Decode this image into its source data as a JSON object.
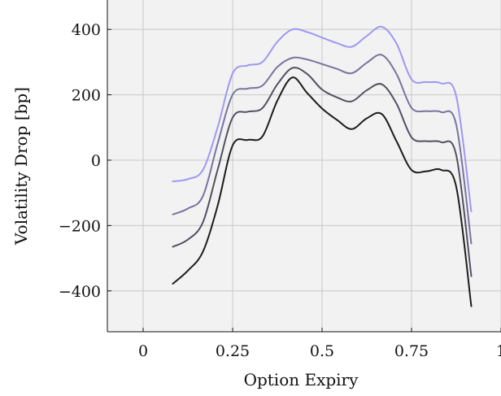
{
  "chart_data": {
    "type": "line",
    "title": "",
    "xlabel": "Option Expiry",
    "ylabel": "Volatility Drop [bp]",
    "xlim": [
      -0.1,
      1.0
    ],
    "ylim": [
      -525,
      490
    ],
    "grid": true,
    "background": "#f2f2f2",
    "x_ticks": [
      0,
      0.25,
      0.5,
      0.75,
      1
    ],
    "x_tick_labels": [
      "0",
      "0.25",
      "0.5",
      "0.75",
      "1"
    ],
    "y_ticks": [
      -400,
      -200,
      0,
      200,
      400
    ],
    "y_tick_labels": [
      "−400",
      "−200",
      "0",
      "200",
      "400"
    ],
    "x": [
      0.083,
      0.125,
      0.167,
      0.208,
      0.25,
      0.292,
      0.333,
      0.375,
      0.417,
      0.458,
      0.5,
      0.542,
      0.583,
      0.625,
      0.667,
      0.708,
      0.75,
      0.792,
      0.833,
      0.875,
      0.917
    ],
    "series": [
      {
        "color": "#9f98f0",
        "values": [
          -65,
          -58,
          -30,
          100,
          265,
          290,
          300,
          362,
          400,
          392,
          375,
          358,
          347,
          380,
          408,
          357,
          247,
          239,
          235,
          195,
          -157
        ]
      },
      {
        "color": "#77739e",
        "values": [
          -166,
          -148,
          -110,
          50,
          200,
          219,
          228,
          285,
          313,
          308,
          294,
          279,
          266,
          298,
          322,
          264,
          160,
          150,
          147,
          108,
          -255
        ]
      },
      {
        "color": "#525062",
        "values": [
          -265,
          -243,
          -190,
          -30,
          130,
          148,
          159,
          232,
          282,
          264,
          216,
          192,
          180,
          214,
          232,
          173,
          70,
          58,
          55,
          15,
          -355
        ]
      },
      {
        "color": "#1f1b1b",
        "values": [
          -378,
          -338,
          -280,
          -140,
          45,
          62,
          72,
          182,
          253,
          206,
          158,
          123,
          95,
          128,
          141,
          58,
          -30,
          -34,
          -30,
          -82,
          -447
        ]
      }
    ]
  }
}
